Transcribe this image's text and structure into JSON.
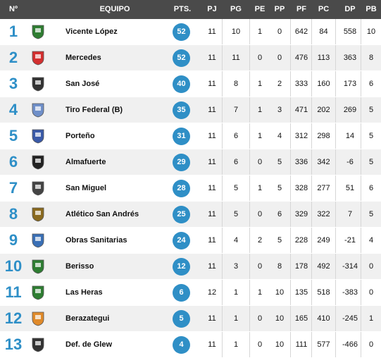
{
  "header": {
    "pos": "Nº",
    "team": "EQUIPO",
    "pts": "PTS.",
    "pj": "PJ",
    "pg": "PG",
    "pe": "PE",
    "pp": "PP",
    "pf": "PF",
    "pc": "PC",
    "dp": "DP",
    "pb": "PB"
  },
  "rows": [
    {
      "pos": "1",
      "name": "Vicente López",
      "pts": "52",
      "pj": "11",
      "pg": "10",
      "pe": "1",
      "pp": "0",
      "pf": "642",
      "pc": "84",
      "dp": "558",
      "pb": "10",
      "logo": "vicente-lopez-crest",
      "logo_color": "#2f7d32"
    },
    {
      "pos": "2",
      "name": "Mercedes",
      "pts": "52",
      "pj": "11",
      "pg": "11",
      "pe": "0",
      "pp": "0",
      "pf": "476",
      "pc": "113",
      "dp": "363",
      "pb": "8",
      "logo": "mercedes-crest",
      "logo_color": "#d32f2f"
    },
    {
      "pos": "3",
      "name": "San José",
      "pts": "40",
      "pj": "11",
      "pg": "8",
      "pe": "1",
      "pp": "2",
      "pf": "333",
      "pc": "160",
      "dp": "173",
      "pb": "6",
      "logo": "san-jose-crest",
      "logo_color": "#333333"
    },
    {
      "pos": "4",
      "name": "Tiro Federal (B)",
      "pts": "35",
      "pj": "11",
      "pg": "7",
      "pe": "1",
      "pp": "3",
      "pf": "471",
      "pc": "202",
      "dp": "269",
      "pb": "5",
      "logo": "tiro-federal-crest",
      "logo_color": "#6f8fc9"
    },
    {
      "pos": "5",
      "name": "Porteño",
      "pts": "31",
      "pj": "11",
      "pg": "6",
      "pe": "1",
      "pp": "4",
      "pf": "312",
      "pc": "298",
      "dp": "14",
      "pb": "5",
      "logo": "porteno-crest",
      "logo_color": "#3a5aa8"
    },
    {
      "pos": "6",
      "name": "Almafuerte",
      "pts": "29",
      "pj": "11",
      "pg": "6",
      "pe": "0",
      "pp": "5",
      "pf": "336",
      "pc": "342",
      "dp": "-6",
      "pb": "5",
      "logo": "almafuerte-crest",
      "logo_color": "#222222"
    },
    {
      "pos": "7",
      "name": "San Miguel",
      "pts": "28",
      "pj": "11",
      "pg": "5",
      "pe": "1",
      "pp": "5",
      "pf": "328",
      "pc": "277",
      "dp": "51",
      "pb": "6",
      "logo": "san-miguel-crest",
      "logo_color": "#444444"
    },
    {
      "pos": "8",
      "name": "Atlético San Andrés",
      "pts": "25",
      "pj": "11",
      "pg": "5",
      "pe": "0",
      "pp": "6",
      "pf": "329",
      "pc": "322",
      "dp": "7",
      "pb": "5",
      "logo": "san-andres-crest",
      "logo_color": "#8a6a1f"
    },
    {
      "pos": "9",
      "name": "Obras Sanitarias",
      "pts": "24",
      "pj": "11",
      "pg": "4",
      "pe": "2",
      "pp": "5",
      "pf": "228",
      "pc": "249",
      "dp": "-21",
      "pb": "4",
      "logo": "obras-sanitarias-crest",
      "logo_color": "#3a6fb5"
    },
    {
      "pos": "10",
      "name": "Berisso",
      "pts": "12",
      "pj": "11",
      "pg": "3",
      "pe": "0",
      "pp": "8",
      "pf": "178",
      "pc": "492",
      "dp": "-314",
      "pb": "0",
      "logo": "berisso-crest",
      "logo_color": "#2e7d32"
    },
    {
      "pos": "11",
      "name": "Las Heras",
      "pts": "6",
      "pj": "12",
      "pg": "1",
      "pe": "1",
      "pp": "10",
      "pf": "135",
      "pc": "518",
      "dp": "-383",
      "pb": "0",
      "logo": "las-heras-crest",
      "logo_color": "#2e7d32"
    },
    {
      "pos": "12",
      "name": "Berazategui",
      "pts": "5",
      "pj": "11",
      "pg": "1",
      "pe": "0",
      "pp": "10",
      "pf": "165",
      "pc": "410",
      "dp": "-245",
      "pb": "1",
      "logo": "berazategui-crest",
      "logo_color": "#e08a2a"
    },
    {
      "pos": "13",
      "name": "Def. de Glew",
      "pts": "4",
      "pj": "11",
      "pg": "1",
      "pe": "0",
      "pp": "10",
      "pf": "111",
      "pc": "577",
      "dp": "-466",
      "pb": "0",
      "logo": "def-glew-crest",
      "logo_color": "#333333"
    }
  ]
}
